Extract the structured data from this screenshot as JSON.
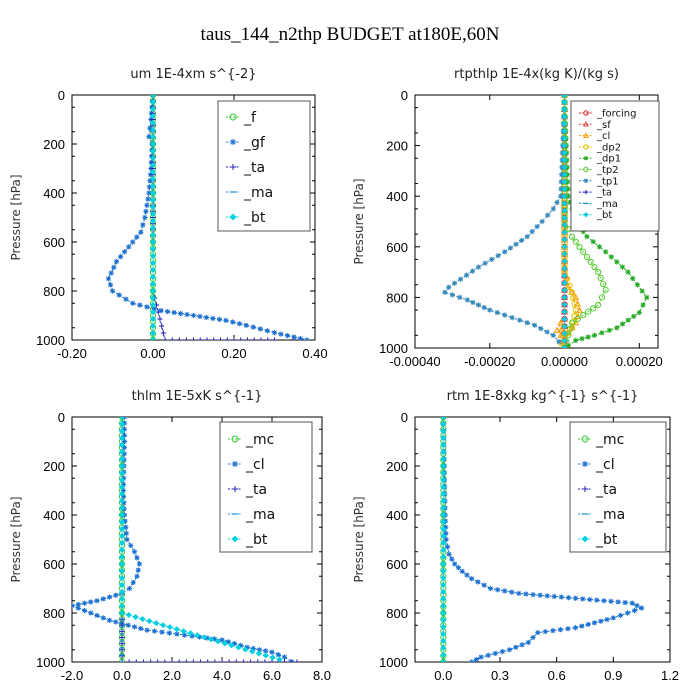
{
  "figure_title": "taus_144_n2thp  BUDGET at180E,60N",
  "chart_data": [
    {
      "type": "line",
      "title": "um  1E-4xm s^{-2}",
      "ylabel": "Pressure [hPa]",
      "xlim": [
        -0.2,
        0.4
      ],
      "ylim": [
        1000,
        0
      ],
      "xticks": [
        "-0.20",
        "0.00",
        "0.20",
        "0.40"
      ],
      "yticks": [
        "0",
        "200",
        "400",
        "600",
        "800",
        "1000"
      ],
      "legend_placement": "top-right",
      "series": [
        {
          "name": "_f",
          "color": "#33cc33",
          "marker": "circle",
          "x": [
            0,
            0,
            0,
            0,
            0,
            0,
            0,
            0,
            0,
            0,
            0
          ],
          "y": [
            0,
            100,
            200,
            300,
            400,
            500,
            600,
            700,
            800,
            900,
            1000
          ]
        },
        {
          "name": "_gf",
          "color": "#1a70d0",
          "marker": "star",
          "x": [
            0,
            -0.005,
            -0.01,
            -0.002,
            -0.005,
            -0.01,
            -0.02,
            -0.03,
            -0.06,
            -0.09,
            -0.11,
            -0.1,
            -0.05,
            0.02,
            0.1,
            0.18,
            0.23,
            0.3,
            0.38
          ],
          "y": [
            0,
            100,
            170,
            200,
            300,
            400,
            500,
            560,
            620,
            680,
            750,
            800,
            850,
            880,
            900,
            920,
            940,
            970,
            1000
          ]
        },
        {
          "name": "_ta",
          "color": "#2222bb",
          "marker": "plus",
          "x": [
            0,
            0,
            0,
            0,
            0,
            0,
            0,
            0,
            0.03,
            0.1,
            0.2,
            0.3
          ],
          "y": [
            0,
            100,
            200,
            300,
            400,
            500,
            600,
            800,
            1000,
            1000,
            1000,
            1000
          ]
        },
        {
          "name": "_ma",
          "color": "#1a90d0",
          "marker": "dash",
          "x": [
            0,
            0,
            0,
            0,
            0,
            0
          ],
          "y": [
            0,
            200,
            400,
            600,
            800,
            1000
          ]
        },
        {
          "name": "_bt",
          "color": "#00d0e0",
          "marker": "diamond",
          "x": [
            0,
            0,
            0,
            0,
            0,
            0
          ],
          "y": [
            0,
            200,
            400,
            600,
            800,
            1000
          ]
        }
      ]
    },
    {
      "type": "line",
      "title": "rtpthlp  1E-4x(kg K)/(kg s)",
      "ylabel": "Pressure [hPa]",
      "xlim": [
        -0.0004,
        0.00025
      ],
      "ylim": [
        1000,
        0
      ],
      "xticks": [
        "-0.00040",
        "-0.00020",
        "0.00000",
        "0.00020"
      ],
      "yticks": [
        "0",
        "200",
        "400",
        "600",
        "800",
        "1000"
      ],
      "legend_placement": "top-right",
      "series": [
        {
          "name": "_forcing",
          "color": "#d02020",
          "marker": "circle",
          "x": [
            0,
            0,
            0,
            0,
            0,
            0
          ],
          "y": [
            0,
            200,
            400,
            600,
            800,
            1000
          ]
        },
        {
          "name": "_sf",
          "color": "#e04040",
          "marker": "triangle",
          "x": [
            0,
            0,
            0,
            0,
            0,
            0
          ],
          "y": [
            0,
            200,
            400,
            600,
            800,
            1000
          ]
        },
        {
          "name": "_cl",
          "color": "#ff9900",
          "marker": "triangle",
          "x": [
            0,
            0,
            0,
            5e-06,
            1e-05,
            3e-05,
            4e-05,
            3e-05,
            1e-05,
            -1e-05,
            -2e-05,
            -1e-05,
            0
          ],
          "y": [
            0,
            600,
            700,
            720,
            760,
            800,
            850,
            900,
            940,
            950,
            930,
            900,
            1000
          ]
        },
        {
          "name": "_dp2",
          "color": "#e0c000",
          "marker": "circle",
          "x": [
            0,
            0,
            2e-05,
            3e-05,
            2e-05,
            0,
            -1e-05,
            0
          ],
          "y": [
            0,
            700,
            780,
            850,
            920,
            960,
            980,
            1000
          ]
        },
        {
          "name": "_dp1",
          "color": "#22aa22",
          "marker": "star",
          "x": [
            0,
            1e-05,
            3e-05,
            6e-05,
            0.00011,
            0.00017,
            0.00022,
            0.0002,
            0.00014,
            8e-05,
            3e-05,
            1e-05,
            0
          ],
          "y": [
            0,
            400,
            500,
            560,
            620,
            700,
            800,
            860,
            920,
            950,
            970,
            990,
            1000
          ]
        },
        {
          "name": "_tp2",
          "color": "#55cc33",
          "marker": "circle",
          "x": [
            0,
            0,
            2e-05,
            5e-05,
            9e-05,
            0.00011,
            9e-05,
            5e-05,
            2e-05,
            0
          ],
          "y": [
            0,
            500,
            560,
            620,
            700,
            770,
            830,
            870,
            900,
            1000
          ]
        },
        {
          "name": "_tp1",
          "color": "#3388bb",
          "marker": "star",
          "x": [
            0,
            -1e-05,
            -3e-05,
            -6e-05,
            -0.0001,
            -0.00016,
            -0.00023,
            -0.00031,
            -0.00032,
            -0.00026,
            -0.0002,
            -0.00014,
            -8e-05,
            -3e-05,
            0
          ],
          "y": [
            0,
            400,
            450,
            500,
            560,
            620,
            680,
            760,
            780,
            810,
            850,
            880,
            910,
            950,
            1000
          ]
        },
        {
          "name": "_ta",
          "color": "#2222bb",
          "marker": "plus",
          "x": [
            0,
            0,
            0,
            0,
            0,
            0
          ],
          "y": [
            0,
            200,
            400,
            600,
            800,
            1000
          ]
        },
        {
          "name": "_ma",
          "color": "#1a90d0",
          "marker": "dash",
          "x": [
            0,
            0,
            0,
            0,
            0,
            0
          ],
          "y": [
            0,
            200,
            400,
            600,
            800,
            1000
          ]
        },
        {
          "name": "_bt",
          "color": "#00d0e0",
          "marker": "diamond",
          "x": [
            0,
            0,
            0,
            0,
            0,
            0
          ],
          "y": [
            0,
            200,
            400,
            600,
            800,
            1000
          ]
        }
      ]
    },
    {
      "type": "line",
      "title": "thlm  1E-5xK s^{-1}",
      "ylabel": "Pressure [hPa]",
      "xlim": [
        -2.0,
        8.0
      ],
      "ylim": [
        1000,
        0
      ],
      "xticks": [
        "-2.0",
        "0.0",
        "2.0",
        "4.0",
        "6.0",
        "8.0"
      ],
      "yticks": [
        "0",
        "200",
        "400",
        "600",
        "800",
        "1000"
      ],
      "legend_placement": "top-right",
      "series": [
        {
          "name": "_mc",
          "color": "#33cc33",
          "marker": "circle",
          "x": [
            0,
            0,
            0,
            0,
            0,
            0,
            0,
            0,
            0,
            0,
            0
          ],
          "y": [
            0,
            100,
            200,
            300,
            400,
            500,
            600,
            700,
            800,
            900,
            1000
          ]
        },
        {
          "name": "_cl",
          "color": "#1a70d0",
          "marker": "star",
          "x": [
            0.1,
            0.1,
            0.08,
            0.05,
            0.1,
            0.2,
            0.5,
            0.7,
            0.6,
            0.3,
            0,
            -1,
            -2,
            -1.5,
            -0.5,
            1,
            2.5,
            4,
            5,
            6,
            6.5,
            6.8
          ],
          "y": [
            0,
            100,
            200,
            300,
            400,
            500,
            550,
            600,
            650,
            700,
            720,
            750,
            770,
            790,
            830,
            870,
            890,
            910,
            940,
            960,
            980,
            1000
          ]
        },
        {
          "name": "_ta",
          "color": "#2222bb",
          "marker": "plus",
          "x": [
            0,
            0,
            0,
            0,
            0,
            0,
            0,
            2,
            4,
            6,
            7
          ],
          "y": [
            0,
            200,
            400,
            600,
            800,
            900,
            1000,
            1000,
            1000,
            1000,
            1000
          ]
        },
        {
          "name": "_ma",
          "color": "#1a90d0",
          "marker": "dash",
          "x": [
            0,
            0,
            0,
            0,
            0,
            0
          ],
          "y": [
            0,
            200,
            400,
            600,
            800,
            1000
          ]
        },
        {
          "name": "_bt",
          "color": "#00d0e0",
          "marker": "diamond",
          "x": [
            0,
            0,
            0,
            0,
            0,
            6.3
          ],
          "y": [
            0,
            200,
            400,
            600,
            800,
            990
          ]
        }
      ]
    },
    {
      "type": "line",
      "title": "rtm  1E-8xkg kg^{-1} s^{-1}",
      "ylabel": "Pressure [hPa]",
      "xlim": [
        -0.15,
        1.2
      ],
      "ylim": [
        1000,
        0
      ],
      "xticks": [
        "0.0",
        "0.3",
        "0.6",
        "0.9",
        "1.2"
      ],
      "yticks": [
        "0",
        "200",
        "400",
        "600",
        "800",
        "1000"
      ],
      "legend_placement": "top-right",
      "series": [
        {
          "name": "_mc",
          "color": "#33cc33",
          "marker": "circle",
          "x": [
            0,
            0,
            0,
            0,
            0,
            0,
            0,
            0,
            0,
            0,
            0
          ],
          "y": [
            0,
            100,
            200,
            300,
            400,
            500,
            600,
            700,
            800,
            900,
            1000
          ]
        },
        {
          "name": "_cl",
          "color": "#1a70d0",
          "marker": "star",
          "x": [
            0,
            0.005,
            0.01,
            0.015,
            0.03,
            0.06,
            0.1,
            0.15,
            0.25,
            0.4,
            0.7,
            1.0,
            1.05,
            0.9,
            0.7,
            0.5,
            0.45,
            0.35,
            0.2,
            0.15
          ],
          "y": [
            0,
            200,
            400,
            500,
            560,
            600,
            630,
            660,
            700,
            720,
            740,
            760,
            780,
            820,
            860,
            880,
            920,
            950,
            980,
            1000
          ]
        },
        {
          "name": "_ta",
          "color": "#2222bb",
          "marker": "plus",
          "x": [
            0,
            0,
            0,
            0,
            0,
            0
          ],
          "y": [
            0,
            200,
            400,
            600,
            800,
            1000
          ]
        },
        {
          "name": "_ma",
          "color": "#1a90d0",
          "marker": "dash",
          "x": [
            0,
            0,
            0,
            0,
            0,
            0
          ],
          "y": [
            0,
            200,
            400,
            600,
            800,
            1000
          ]
        },
        {
          "name": "_bt",
          "color": "#00d0e0",
          "marker": "diamond",
          "x": [
            0,
            0,
            0,
            0,
            0,
            0
          ],
          "y": [
            0,
            200,
            400,
            600,
            800,
            1000
          ]
        }
      ]
    }
  ]
}
